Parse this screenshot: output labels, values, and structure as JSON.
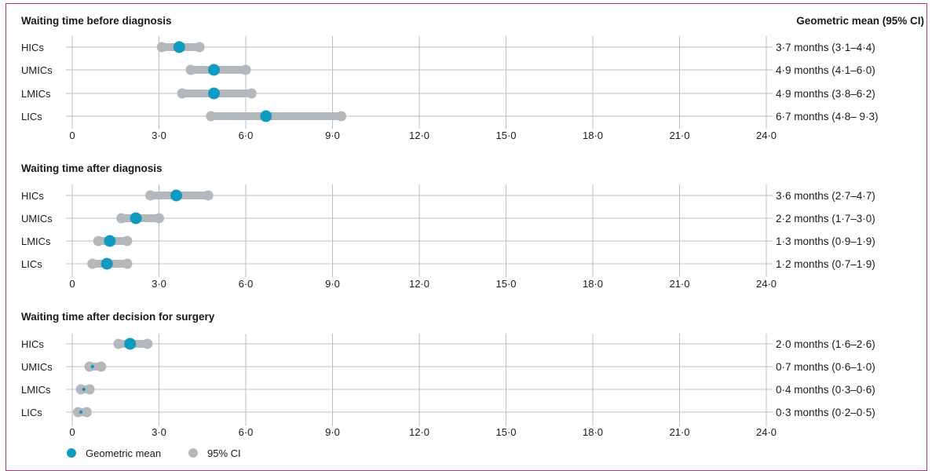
{
  "chart_data": {
    "type": "dot-interval",
    "column_header": "Geometric mean (95% CI)",
    "xlim": [
      0,
      24
    ],
    "x_ticks": [
      "0",
      "3·0",
      "6·0",
      "9·0",
      "12·0",
      "15·0",
      "18·0",
      "21·0",
      "24·0"
    ],
    "x_tick_values": [
      0,
      3,
      6,
      9,
      12,
      15,
      18,
      21,
      24
    ],
    "legend": {
      "mean": "Geometric mean",
      "ci": "95% CI",
      "placement": "bottom-left"
    },
    "colors": {
      "mean": "#0f9bbf",
      "ci": "#b3b8bd",
      "grid": "#b9bec3",
      "border": "#b5357a"
    },
    "panels": [
      {
        "title": "Waiting time before diagnosis",
        "rows": [
          {
            "category": "HICs",
            "mean": 3.7,
            "low": 3.1,
            "high": 4.4,
            "label": "3·7 months (3·1–4·4)"
          },
          {
            "category": "UMICs",
            "mean": 4.9,
            "low": 4.1,
            "high": 6.0,
            "label": "4·9 months (4·1–6·0)"
          },
          {
            "category": "LMICs",
            "mean": 4.9,
            "low": 3.8,
            "high": 6.2,
            "label": "4·9 months (3·8–6·2)"
          },
          {
            "category": "LICs",
            "mean": 6.7,
            "low": 4.8,
            "high": 9.3,
            "label": "6·7 months (4·8– 9·3)"
          }
        ]
      },
      {
        "title": "Waiting time after diagnosis",
        "rows": [
          {
            "category": "HICs",
            "mean": 3.6,
            "low": 2.7,
            "high": 4.7,
            "label": "3·6 months (2·7–4·7)"
          },
          {
            "category": "UMICs",
            "mean": 2.2,
            "low": 1.7,
            "high": 3.0,
            "label": "2·2 months (1·7–3·0)"
          },
          {
            "category": "LMICs",
            "mean": 1.3,
            "low": 0.9,
            "high": 1.9,
            "label": "1·3 months (0·9–1·9)"
          },
          {
            "category": "LICs",
            "mean": 1.2,
            "low": 0.7,
            "high": 1.9,
            "label": "1·2 months (0·7–1·9)"
          }
        ]
      },
      {
        "title": "Waiting time after decision for surgery",
        "rows": [
          {
            "category": "HICs",
            "mean": 2.0,
            "low": 1.6,
            "high": 2.6,
            "label": "2·0 months (1·6–2·6)"
          },
          {
            "category": "UMICs",
            "mean": 0.7,
            "low": 0.6,
            "high": 1.0,
            "label": "0·7 months (0·6–1·0)"
          },
          {
            "category": "LMICs",
            "mean": 0.4,
            "low": 0.3,
            "high": 0.6,
            "label": "0·4 months (0·3–0·6)"
          },
          {
            "category": "LICs",
            "mean": 0.3,
            "low": 0.2,
            "high": 0.5,
            "label": "0·3 months (0·2–0·5)"
          }
        ]
      }
    ]
  }
}
